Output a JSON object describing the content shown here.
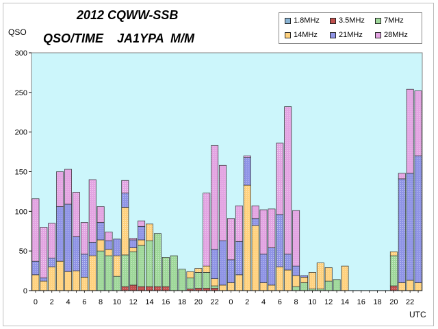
{
  "title_line1": "2012 CQWW-SSB",
  "title_line2": "QSO/TIME    JA1YPA  M/M",
  "chart_data": {
    "type": "bar",
    "stacked": true,
    "ylabel": "QSO",
    "xlabel": "UTC",
    "ylim": [
      0,
      300
    ],
    "yticks": [
      0,
      50,
      100,
      150,
      200,
      250,
      300
    ],
    "grid": false,
    "legend_position": "top-right",
    "plot_background": "#ccf6fb",
    "categories": [
      0,
      1,
      2,
      3,
      4,
      5,
      6,
      7,
      8,
      9,
      10,
      11,
      12,
      13,
      14,
      15,
      16,
      17,
      18,
      19,
      20,
      21,
      22,
      23,
      0,
      1,
      2,
      3,
      4,
      5,
      6,
      7,
      8,
      9,
      10,
      11,
      12,
      13,
      14,
      15,
      16,
      17,
      18,
      19,
      20,
      21,
      22,
      23
    ],
    "tick_labels": [
      "0",
      "",
      "2",
      "",
      "4",
      "",
      "6",
      "",
      "8",
      "",
      "10",
      "",
      "12",
      "",
      "14",
      "",
      "16",
      "",
      "18",
      "",
      "20",
      "",
      "22",
      "",
      "0",
      "",
      "2",
      "",
      "4",
      "",
      "6",
      "",
      "8",
      "",
      "10",
      "",
      "12",
      "",
      "14",
      "",
      "16",
      "",
      "18",
      "",
      "20",
      "",
      "22",
      ""
    ],
    "series": [
      {
        "name": "1.8MHz",
        "color": "#8ab4d4",
        "values": [
          0,
          0,
          0,
          0,
          0,
          0,
          0,
          0,
          0,
          0,
          0,
          0,
          0,
          0,
          0,
          0,
          0,
          0,
          0,
          0,
          0,
          0,
          0,
          0,
          0,
          0,
          0,
          0,
          0,
          0,
          0,
          0,
          0,
          0,
          0,
          0,
          0,
          0,
          0,
          0,
          0,
          0,
          0,
          0,
          0,
          0,
          0,
          0
        ]
      },
      {
        "name": "3.5MHz",
        "color": "#c0504d",
        "values": [
          0,
          0,
          0,
          0,
          0,
          0,
          0,
          0,
          0,
          0,
          0,
          5,
          7,
          5,
          5,
          5,
          5,
          0,
          0,
          2,
          3,
          3,
          3,
          0,
          0,
          0,
          0,
          0,
          0,
          0,
          0,
          0,
          0,
          0,
          0,
          0,
          0,
          0,
          0,
          0,
          0,
          0,
          0,
          0,
          6,
          0,
          0,
          0
        ]
      },
      {
        "name": "7MHz",
        "color": "#9fd89a",
        "values": [
          0,
          0,
          0,
          0,
          0,
          0,
          0,
          0,
          50,
          44,
          18,
          40,
          42,
          52,
          58,
          67,
          37,
          44,
          27,
          14,
          20,
          20,
          3,
          0,
          0,
          0,
          0,
          0,
          0,
          0,
          0,
          0,
          5,
          10,
          2,
          2,
          12,
          14,
          0,
          0,
          0,
          0,
          0,
          0,
          38,
          0,
          0,
          0
        ]
      },
      {
        "name": "14MHz",
        "color": "#ffd27f",
        "values": [
          20,
          12,
          30,
          37,
          24,
          25,
          17,
          44,
          14,
          8,
          26,
          60,
          5,
          7,
          21,
          0,
          0,
          0,
          0,
          8,
          5,
          8,
          9,
          7,
          10,
          20,
          133,
          82,
          10,
          7,
          30,
          26,
          14,
          7,
          21,
          33,
          17,
          0,
          31,
          0,
          0,
          0,
          0,
          0,
          5,
          10,
          13,
          10
        ]
      },
      {
        "name": "21MHz",
        "color": "#8f94e6",
        "values": [
          17,
          4,
          11,
          69,
          85,
          43,
          29,
          17,
          22,
          11,
          21,
          18,
          10,
          17,
          0,
          0,
          0,
          0,
          0,
          0,
          0,
          0,
          37,
          56,
          29,
          42,
          35,
          9,
          36,
          47,
          66,
          20,
          12,
          2,
          0,
          0,
          0,
          0,
          0,
          0,
          0,
          0,
          0,
          0,
          0,
          131,
          135,
          160
        ]
      },
      {
        "name": "28MHz",
        "color": "#e3a4e2",
        "values": [
          79,
          64,
          44,
          44,
          44,
          56,
          40,
          79,
          20,
          11,
          0,
          16,
          2,
          7,
          0,
          0,
          0,
          0,
          0,
          0,
          0,
          92,
          131,
          95,
          52,
          45,
          2,
          16,
          56,
          49,
          90,
          186,
          70,
          0,
          0,
          0,
          0,
          0,
          0,
          0,
          0,
          0,
          0,
          0,
          0,
          7,
          106,
          82
        ]
      }
    ]
  }
}
